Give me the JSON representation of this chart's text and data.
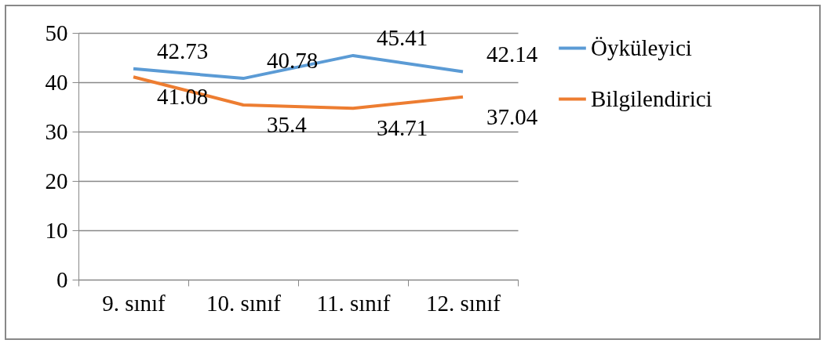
{
  "chart_data": {
    "type": "line",
    "categories": [
      "9. sınıf",
      "10. sınıf",
      "11. sınıf",
      "12. sınıf"
    ],
    "series": [
      {
        "name": "Öyküleyici",
        "color": "#5b9bd5",
        "values": [
          42.73,
          40.78,
          45.41,
          42.14
        ]
      },
      {
        "name": "Bilgilendirici",
        "color": "#ed7d31",
        "values": [
          41.08,
          35.4,
          34.71,
          37.04
        ]
      }
    ],
    "ylim": [
      0,
      50
    ],
    "yticks": [
      0,
      10,
      20,
      30,
      40,
      50
    ],
    "grid": "y",
    "legend": "right",
    "data_labels": true,
    "marker": "none",
    "line_style": "solid"
  }
}
